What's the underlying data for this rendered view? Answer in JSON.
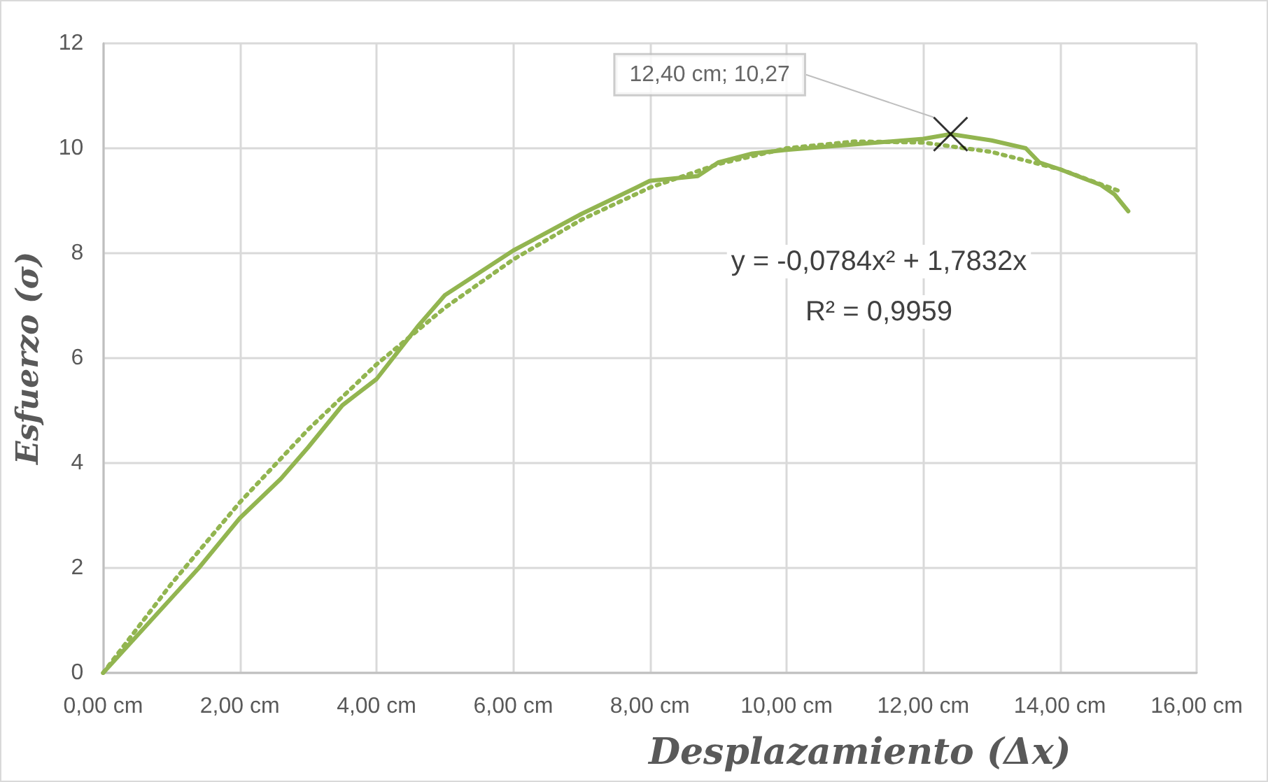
{
  "chart_data": {
    "type": "line",
    "xlabel": "Desplazamiento (Δx)",
    "ylabel": "Esfuerzo (σ)",
    "xlim": [
      0,
      16
    ],
    "xticks": [
      {
        "value": 0,
        "label": "0,00 cm"
      },
      {
        "value": 2,
        "label": "2,00 cm"
      },
      {
        "value": 4,
        "label": "4,00 cm"
      },
      {
        "value": 6,
        "label": "6,00 cm"
      },
      {
        "value": 8,
        "label": "8,00 cm"
      },
      {
        "value": 10,
        "label": "10,00 cm"
      },
      {
        "value": 12,
        "label": "12,00 cm"
      },
      {
        "value": 14,
        "label": "14,00 cm"
      },
      {
        "value": 16,
        "label": "16,00 cm"
      }
    ],
    "ylim": [
      0,
      12
    ],
    "yticks": [
      0,
      2,
      4,
      6,
      8,
      10,
      12
    ],
    "grid": true,
    "series": [
      {
        "color": "#92b550",
        "line_style": "solid",
        "marker": "none",
        "x": [
          0,
          1.4,
          2,
          2.6,
          3,
          3.5,
          4,
          4.6,
          5,
          6,
          7,
          7.8,
          8,
          8.7,
          9,
          9.5,
          10,
          12,
          12.4,
          13,
          13.5,
          13.7,
          14,
          14.6,
          14.8,
          15
        ],
        "values": [
          0,
          2.0,
          2.95,
          3.7,
          4.3,
          5.1,
          5.6,
          6.6,
          7.2,
          8.05,
          8.75,
          9.25,
          9.38,
          9.47,
          9.73,
          9.9,
          9.97,
          10.18,
          10.27,
          10.15,
          10.0,
          9.73,
          9.6,
          9.3,
          9.12,
          8.8
        ]
      },
      {
        "color": "#92b550",
        "line_style": "dotted",
        "marker": "none",
        "x": [
          0,
          1,
          2,
          3,
          4,
          5,
          6,
          7,
          8,
          9,
          10,
          11,
          12,
          13,
          14,
          14.9
        ],
        "values": [
          0,
          1.7,
          3.25,
          4.64,
          5.88,
          6.96,
          7.88,
          8.64,
          9.25,
          9.7,
          10.0,
          10.13,
          10.11,
          9.93,
          9.6,
          9.17
        ]
      },
      {
        "type": "scatter",
        "color": "#000000",
        "marker": "cross",
        "x": [
          12.4
        ],
        "values": [
          10.27
        ],
        "value_labels": [
          "12,40 cm; 10,27"
        ]
      }
    ],
    "annotations": [
      "y = -0,0784x² + 1,7832x",
      "R² = 0,9959"
    ]
  }
}
